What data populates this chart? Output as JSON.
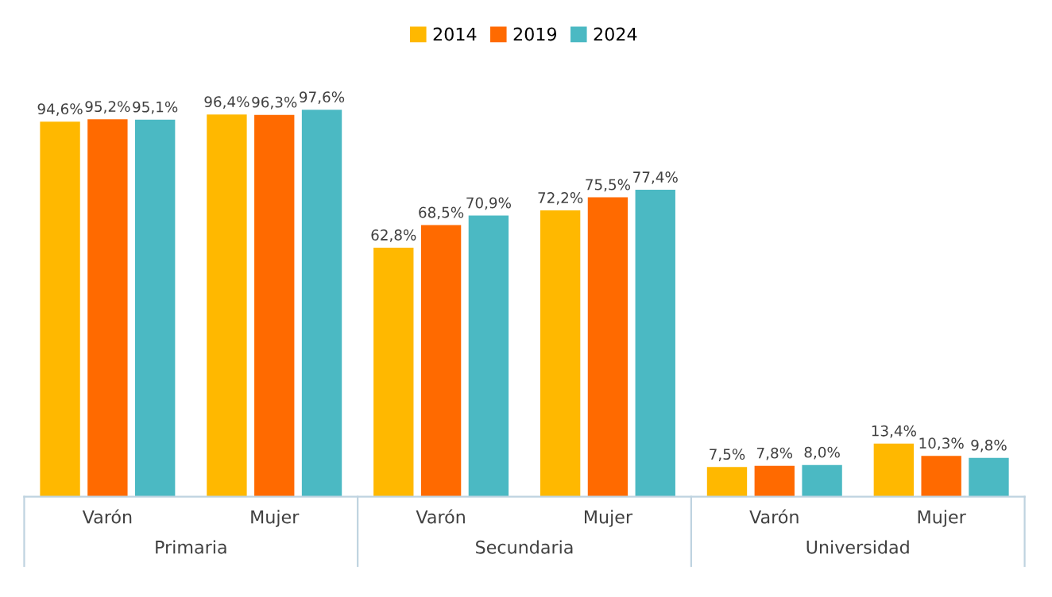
{
  "chart_data": {
    "type": "bar",
    "categories": [
      "Varón",
      "Mujer",
      "Varón",
      "Mujer",
      "Varón",
      "Mujer"
    ],
    "annotations": [
      "Primaria",
      "Secundaria",
      "Universidad"
    ],
    "series": [
      {
        "name": "2014",
        "color": "#ffb800",
        "values": [
          94.6,
          96.4,
          62.8,
          72.2,
          7.5,
          13.4
        ],
        "value_labels": [
          "94,6%",
          "96,4%",
          "62,8%",
          "72,2%",
          "7,5%",
          "13,4%"
        ]
      },
      {
        "name": "2019",
        "color": "#ff6a00",
        "values": [
          95.2,
          96.3,
          68.5,
          75.5,
          7.8,
          10.3
        ],
        "value_labels": [
          "95,2%",
          "96,3%",
          "68,5%",
          "75,5%",
          "7,8%",
          "10,3%"
        ]
      },
      {
        "name": "2024",
        "color": "#4bb9c3",
        "values": [
          95.1,
          97.6,
          70.9,
          77.4,
          8.0,
          9.8
        ],
        "value_labels": [
          "95,1%",
          "97,6%",
          "70,9%",
          "77,4%",
          "8,0%",
          "9,8%"
        ]
      }
    ],
    "legend": "top",
    "grid": false
  }
}
